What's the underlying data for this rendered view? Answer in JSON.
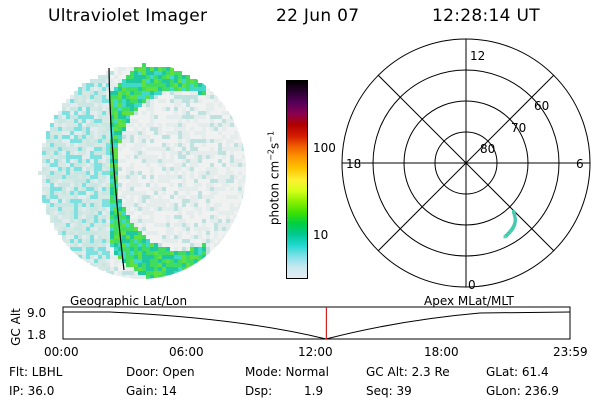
{
  "header": {
    "instrument": "Ultraviolet Imager",
    "date": "22 Jun 07",
    "time": "12:28:14 UT"
  },
  "colorbar": {
    "unit_label": "photon cm",
    "unit_exp1": "−2",
    "unit_mid": "s",
    "unit_exp2": "−1",
    "ticks": [
      "100",
      "10"
    ],
    "tick_values": [
      100,
      10
    ],
    "colors": [
      "#000000",
      "#2a0030",
      "#55005a",
      "#8a0050",
      "#b00000",
      "#d41a00",
      "#f06000",
      "#ff9800",
      "#ffc400",
      "#ffee33",
      "#d8ff1a",
      "#8cf000",
      "#40e000",
      "#00d040",
      "#00c890",
      "#20d8d0",
      "#80e0e8",
      "#c8e8f0",
      "#e6eef2"
    ]
  },
  "polar_plot": {
    "mlt_labels": {
      "top": "12",
      "left": "18",
      "right": "6",
      "bottom": "0"
    },
    "lat_labels": [
      "60",
      "70",
      "80"
    ]
  },
  "timeline": {
    "ylabel": "GC Alt",
    "y_ticks": [
      "9.0",
      "1.8"
    ],
    "left_caption": "Geographic Lat/Lon",
    "right_caption": "Apex MLat/MLT",
    "x_ticks": [
      "00:00",
      "06:00",
      "12:00",
      "18:00",
      "23:59"
    ],
    "current_time_fraction": 0.5195,
    "line_color": "#d02020"
  },
  "info": {
    "filter": "Flt: LBHL",
    "ip": "IP: 36.0",
    "door": "Door: Open",
    "gain": "Gain: 14",
    "mode": "Mode: Normal",
    "dsp_label": "Dsp:",
    "dsp_value": "1.9",
    "gc_alt": "GC Alt: 2.3 Re",
    "seq": "Seq: 39",
    "glat": "GLat: 61.4",
    "glon": "GLon: 236.9"
  }
}
